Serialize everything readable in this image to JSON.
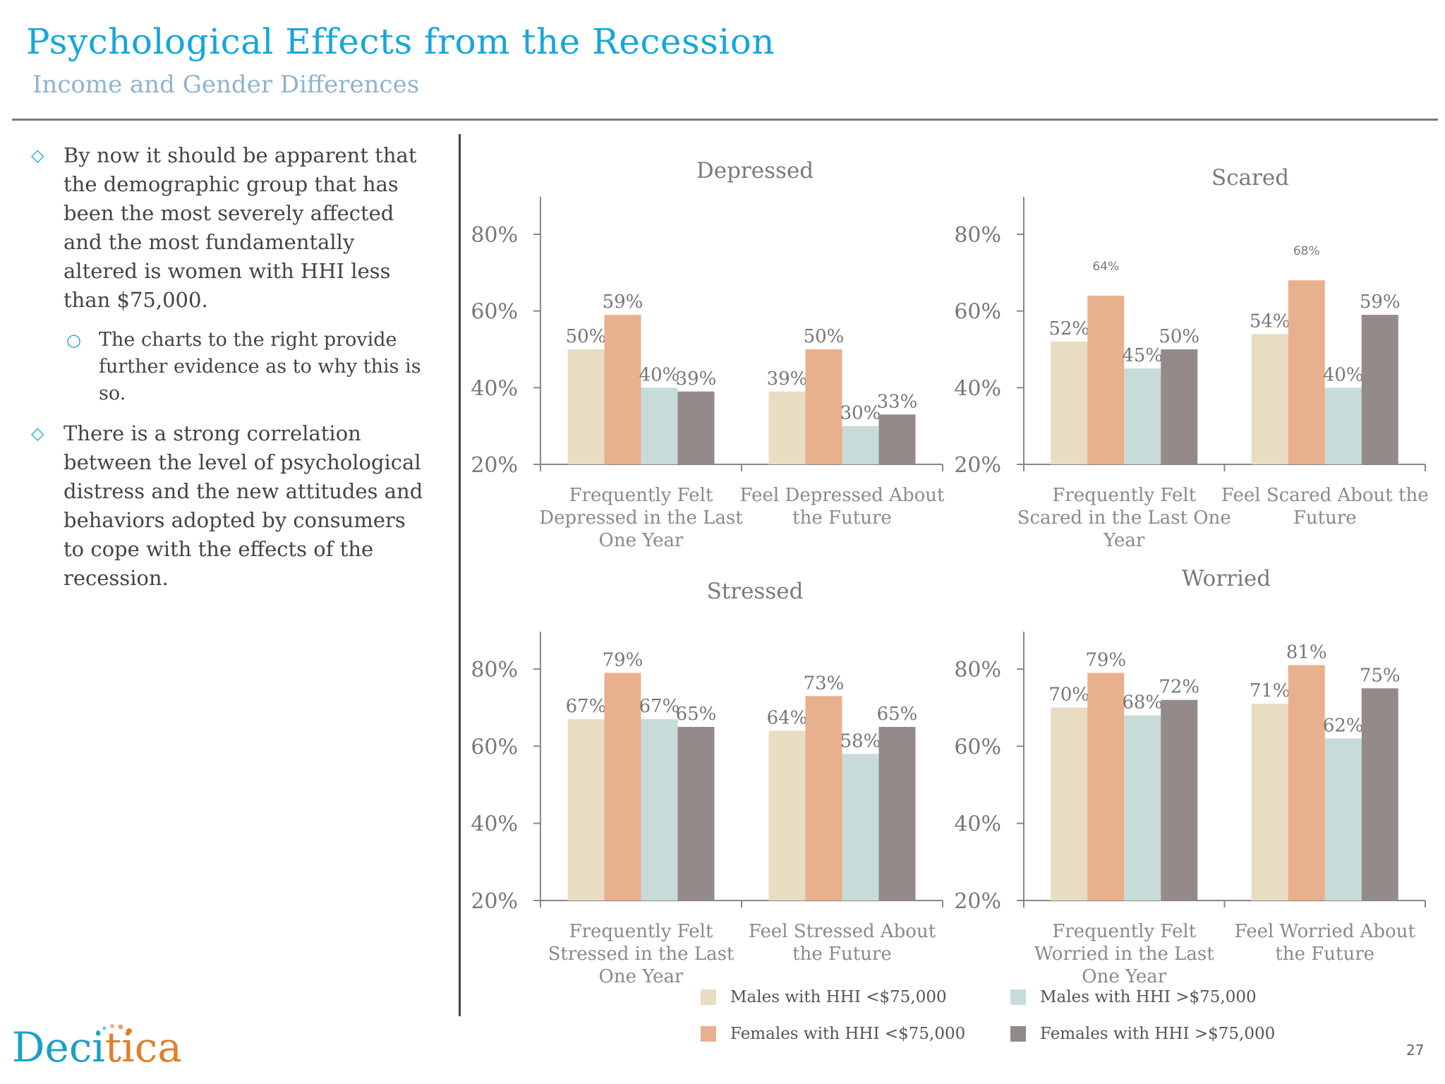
{
  "header": {
    "title": "Psychological Effects from the Recession",
    "subtitle": "Income and Gender Differences"
  },
  "bullets": [
    {
      "marker": "◇",
      "text": "By now it should be apparent that the demographic group that has been the most severely affected and the most fundamentally altered is women with HHI less than $75,000."
    },
    {
      "marker": "◇",
      "text": "There is a strong correlation between the level of psychological distress and the new attitudes and behaviors adopted by consumers to cope with the effects of the recession."
    }
  ],
  "sub_bullets": [
    {
      "marker": "○",
      "text": "The charts to the right provide further evidence as to why this is so."
    }
  ],
  "chart_data": [
    {
      "type": "bar",
      "title": "Depressed",
      "categories": [
        [
          "Frequently Felt",
          "Depressed in the Last",
          "One Year"
        ],
        [
          "Feel Depressed About",
          "the Future"
        ]
      ],
      "series": [
        {
          "name": "Males with HHI <$75,000",
          "values": [
            50,
            39
          ]
        },
        {
          "name": "Females with HHI <$75,000",
          "values": [
            59,
            50
          ]
        },
        {
          "name": "Males with HHI >$75,000",
          "values": [
            40,
            30
          ]
        },
        {
          "name": "Females with HHI >$75,000",
          "values": [
            39,
            33
          ]
        }
      ],
      "yticks": [
        "20%",
        "40%",
        "60%",
        "80%"
      ],
      "ylim": [
        20,
        90
      ]
    },
    {
      "type": "bar",
      "title": "Scared",
      "categories": [
        [
          "Frequently Felt",
          "Scared in the Last One",
          "Year"
        ],
        [
          "Feel Scared About the",
          "Future"
        ]
      ],
      "series": [
        {
          "name": "Males with HHI <$75,000",
          "values": [
            52,
            54
          ]
        },
        {
          "name": "Females with HHI <$75,000",
          "values": [
            64,
            68
          ]
        },
        {
          "name": "Males with HHI >$75,000",
          "values": [
            45,
            40
          ]
        },
        {
          "name": "Females with HHI >$75,000",
          "values": [
            50,
            59
          ]
        }
      ],
      "yticks": [
        "20%",
        "40%",
        "60%",
        "80%"
      ],
      "ylim": [
        20,
        90
      ]
    },
    {
      "type": "bar",
      "title": "Stressed",
      "categories": [
        [
          "Frequently Felt",
          "Stressed in the Last",
          "One Year"
        ],
        [
          "Feel Stressed About",
          "the Future"
        ]
      ],
      "series": [
        {
          "name": "Males with HHI <$75,000",
          "values": [
            67,
            64
          ]
        },
        {
          "name": "Females with HHI <$75,000",
          "values": [
            79,
            73
          ]
        },
        {
          "name": "Males with HHI >$75,000",
          "values": [
            67,
            58
          ]
        },
        {
          "name": "Females with HHI >$75,000",
          "values": [
            65,
            65
          ]
        }
      ],
      "yticks": [
        "20%",
        "40%",
        "60%",
        "80%"
      ],
      "ylim": [
        20,
        90
      ]
    },
    {
      "type": "bar",
      "title": "Worried",
      "categories": [
        [
          "Frequently Felt",
          "Worried in the Last",
          "One Year"
        ],
        [
          "Feel Worried About",
          "the Future"
        ]
      ],
      "series": [
        {
          "name": "Males with HHI <$75,000",
          "values": [
            70,
            71
          ]
        },
        {
          "name": "Females with HHI <$75,000",
          "values": [
            79,
            81
          ]
        },
        {
          "name": "Males with HHI >$75,000",
          "values": [
            68,
            62
          ]
        },
        {
          "name": "Females with HHI >$75,000",
          "values": [
            72,
            75
          ]
        }
      ],
      "yticks": [
        "20%",
        "40%",
        "60%",
        "80%"
      ],
      "ylim": [
        20,
        90
      ]
    }
  ],
  "legend": [
    {
      "label": "Males with HHI <$75,000",
      "color": "#e8dcc2"
    },
    {
      "label": "Males with HHI >$75,000",
      "color": "#c7dcd8"
    },
    {
      "label": "Females with HHI <$75,000",
      "color": "#e9b08e"
    },
    {
      "label": "Females with HHI >$75,000",
      "color": "#938a89"
    }
  ],
  "footer": {
    "logo": "Decitica",
    "logo_part1": "Deci",
    "logo_part2": "tica",
    "page_number": "27"
  },
  "colors": {
    "title": "#16a6dc",
    "subtitle": "#8fb2cf",
    "logo_blue": "#1aa0c8",
    "logo_orange": "#e07d2c"
  }
}
